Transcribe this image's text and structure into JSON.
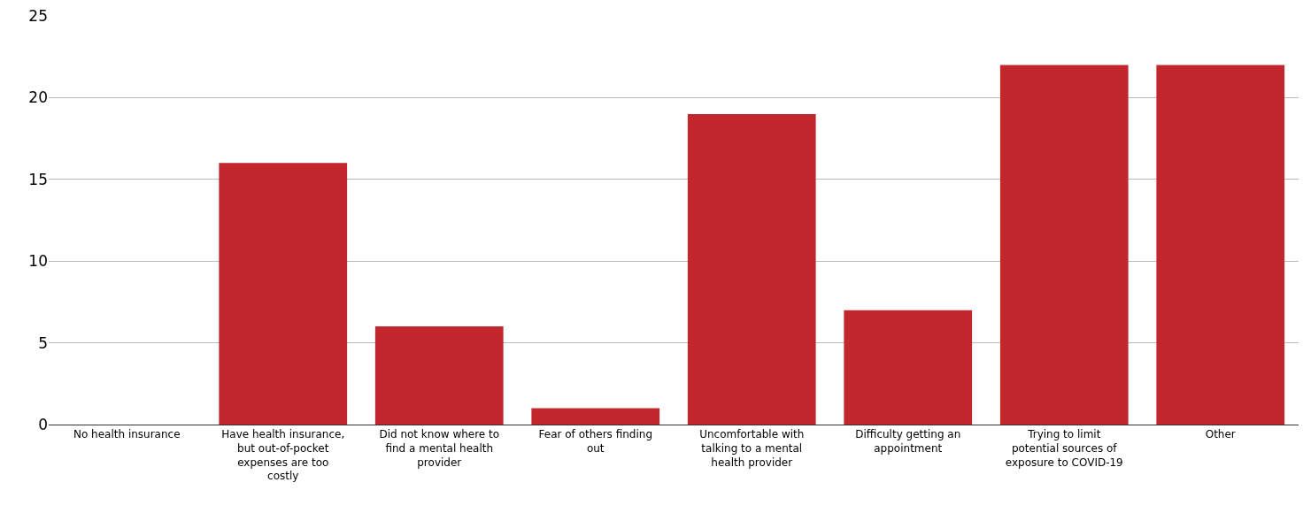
{
  "chart_data": {
    "type": "bar",
    "categories": [
      "No health insurance",
      "Have health insurance, but out-of-pocket expenses are too costly",
      "Did not know where to find a mental health provider",
      "Fear of others finding out",
      "Uncomfortable with talking to a mental health provider",
      "Difficulty getting an appointment",
      "Trying to limit potential sources of exposure to COVID-19",
      "Other"
    ],
    "values": [
      0,
      16,
      6,
      1,
      19,
      7,
      22,
      22
    ],
    "color": "#c1272d",
    "ylim": [
      0,
      25
    ],
    "yticks": [
      0,
      5,
      10,
      15,
      20,
      25
    ],
    "grid": "y"
  }
}
